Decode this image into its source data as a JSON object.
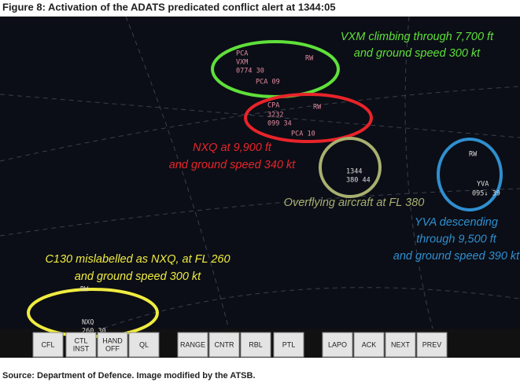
{
  "figure": {
    "title": "Figure 8: Activation of the ADATS predicated conflict alert at 1344:05",
    "source": "Source: Department of Defence. Image modified by the ATSB."
  },
  "annotations": [
    {
      "lines": [
        "VXM climbing through 7,700 ft",
        "and ground speed 300 kt"
      ]
    },
    {
      "lines": [
        "NXQ at 9,900 ft",
        "and ground speed 340 kt"
      ]
    },
    {
      "lines": [
        "Overflying aircraft at FL 380"
      ]
    },
    {
      "lines": [
        "YVA descending",
        "through 9,500 ft",
        "and ground speed 390 kt"
      ]
    },
    {
      "lines": [
        "C130 mislabelled as NXQ, at FL 260",
        "and ground speed 300 kt"
      ]
    }
  ],
  "tracks": [
    {
      "labels": [
        "PCA",
        "VXM",
        "0774 30",
        "PCA 09",
        "RW"
      ]
    },
    {
      "labels": [
        "CPA",
        "3232",
        "099 34",
        "PCA 10",
        "RW"
      ]
    },
    {
      "labels": [
        "1344",
        "380 44"
      ]
    },
    {
      "labels": [
        "RW",
        "YVA",
        "095↓ 39"
      ]
    },
    {
      "labels": [
        "RW",
        "NXQ",
        "260 30"
      ]
    }
  ],
  "buttons": [
    {
      "lines": [
        "CFL"
      ]
    },
    {
      "lines": [
        "CTL",
        "INST"
      ]
    },
    {
      "lines": [
        "HAND",
        "OFF"
      ]
    },
    {
      "lines": [
        "QL"
      ]
    },
    {
      "lines": [
        "RANGE"
      ]
    },
    {
      "lines": [
        "CNTR"
      ]
    },
    {
      "lines": [
        "RBL"
      ]
    },
    {
      "lines": [
        "PTL"
      ]
    },
    {
      "lines": [
        "LAPO"
      ]
    },
    {
      "lines": [
        "ACK"
      ]
    },
    {
      "lines": [
        "NEXT"
      ]
    },
    {
      "lines": [
        "PREV"
      ]
    }
  ]
}
